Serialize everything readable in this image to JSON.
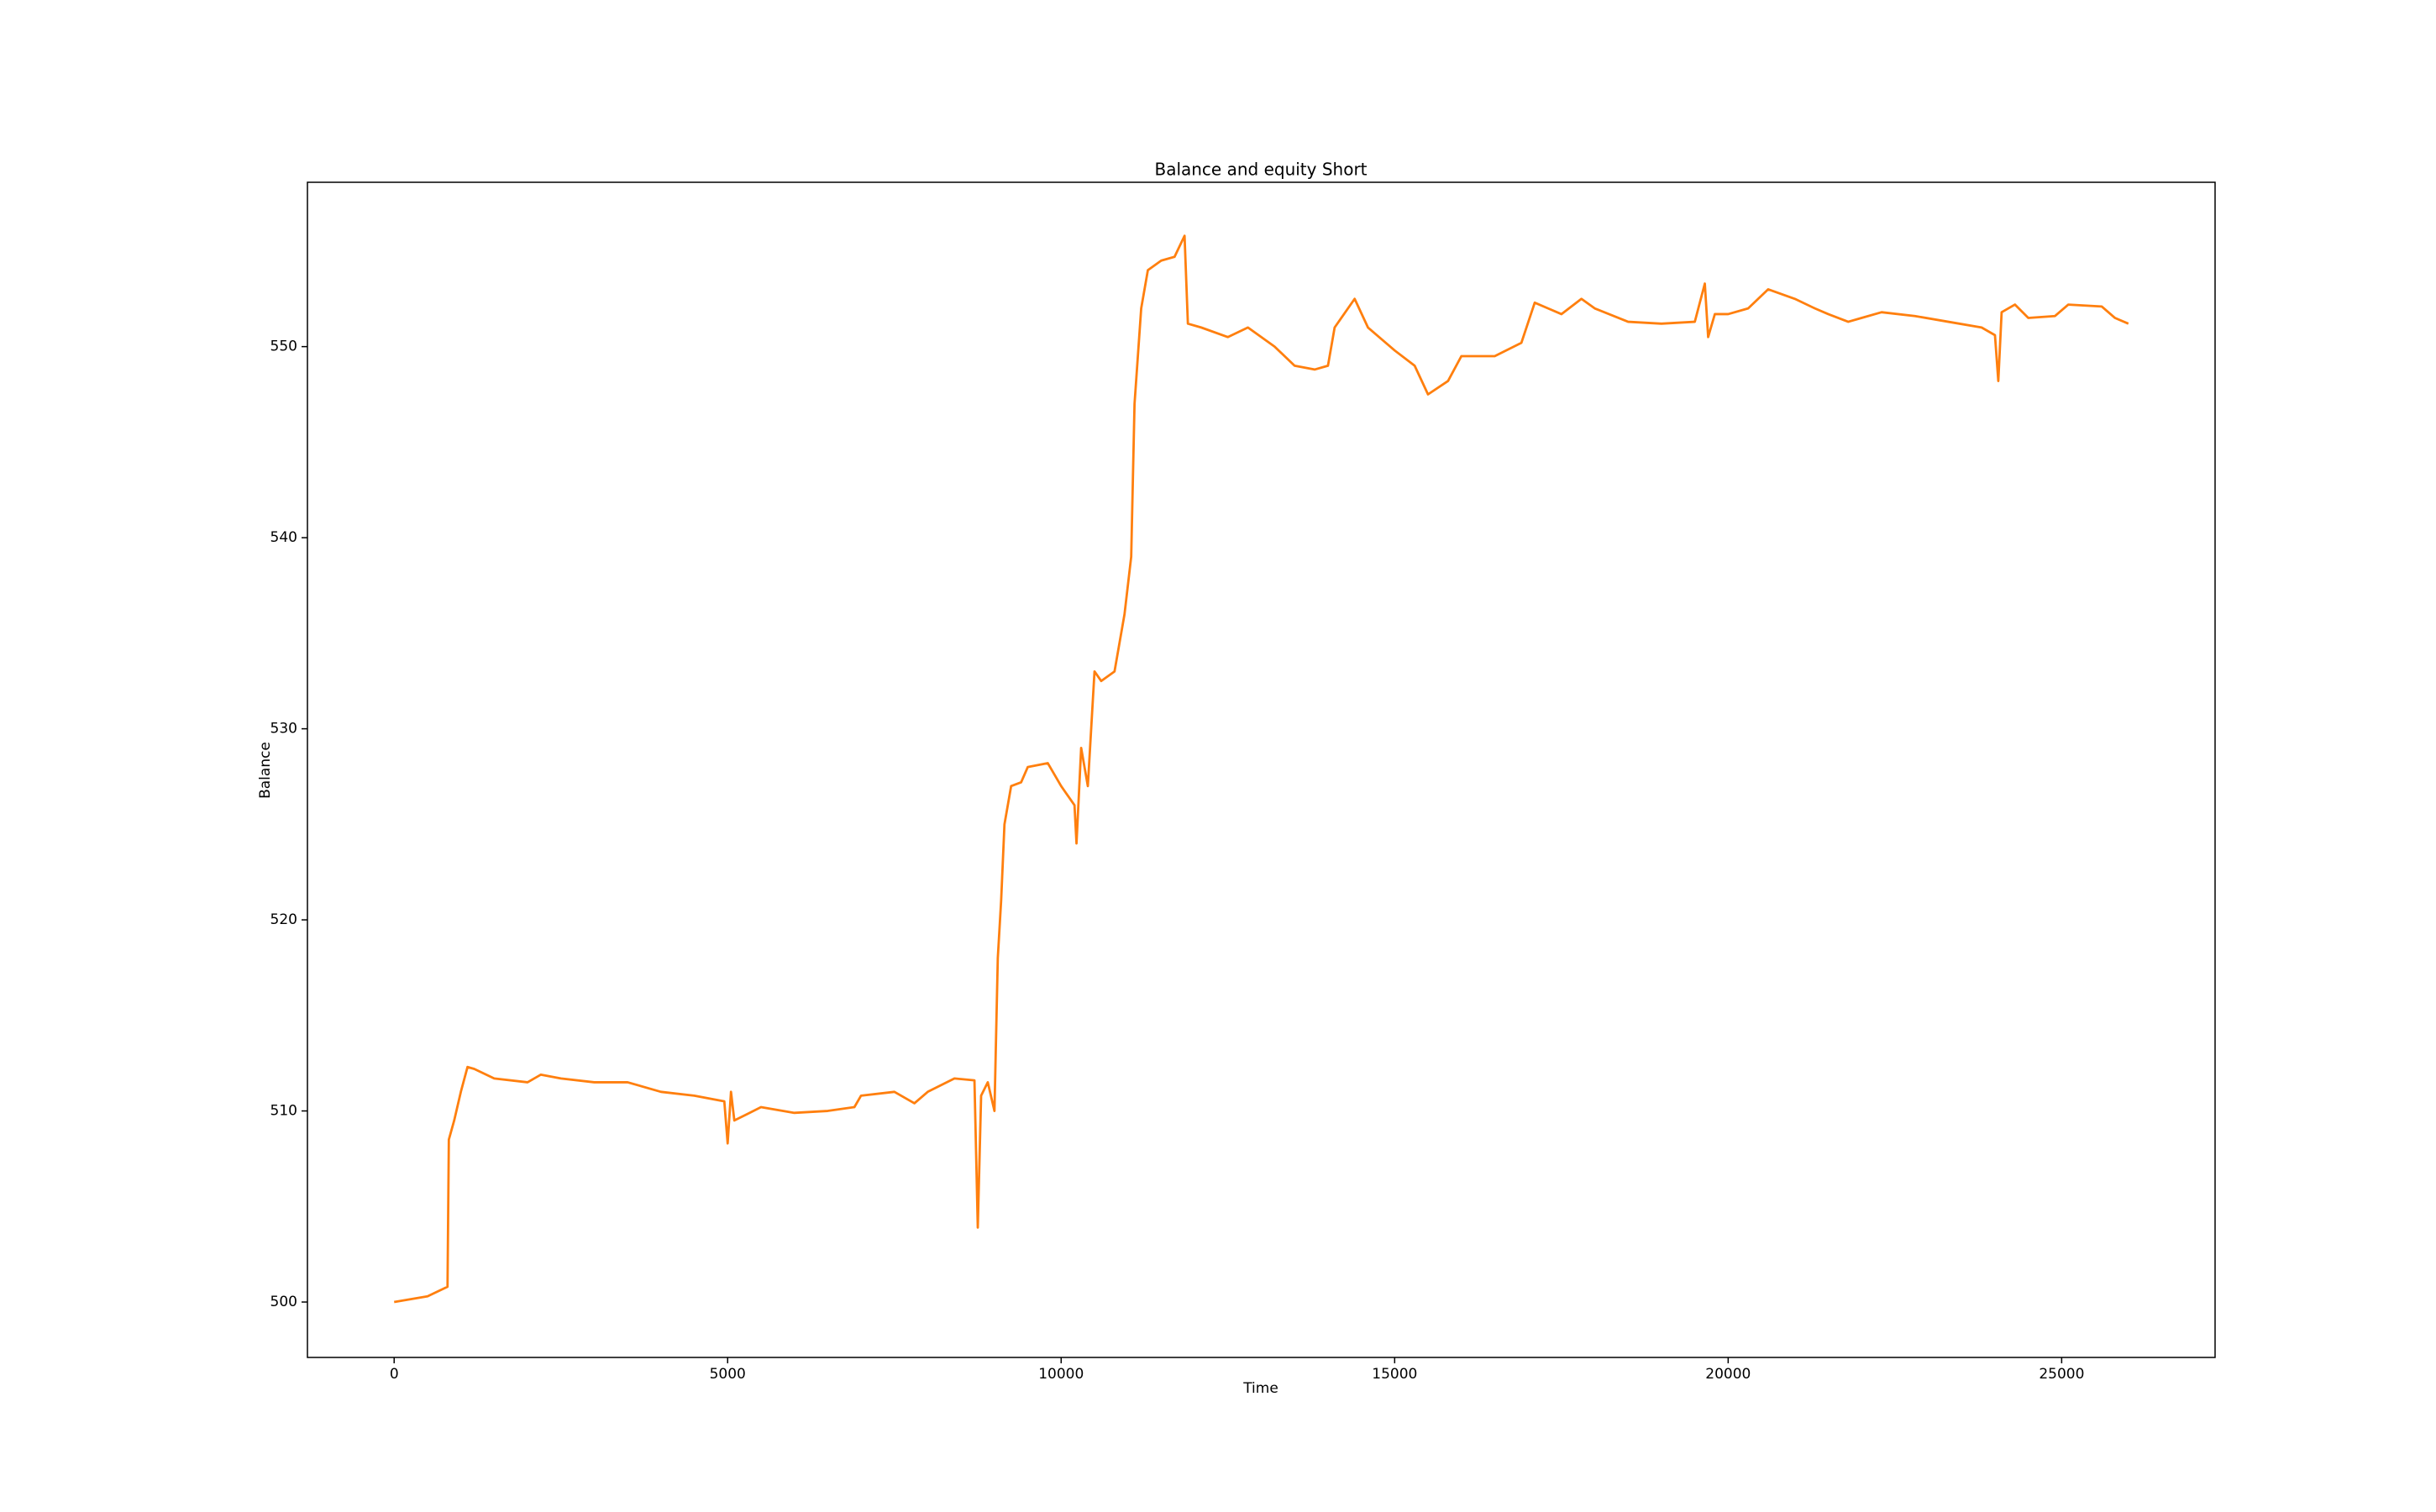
{
  "chart_data": {
    "type": "line",
    "title": "Balance and equity Short",
    "xlabel": "Time",
    "ylabel": "Balance",
    "x": [
      0,
      500,
      800,
      820,
      900,
      1000,
      1100,
      1200,
      1500,
      2000,
      2200,
      2500,
      3000,
      3500,
      4000,
      4500,
      4950,
      5000,
      5050,
      5100,
      5500,
      6000,
      6500,
      6900,
      7000,
      7500,
      7800,
      8000,
      8400,
      8700,
      8750,
      8800,
      8900,
      9000,
      9050,
      9100,
      9150,
      9250,
      9400,
      9500,
      9800,
      10000,
      10200,
      10230,
      10300,
      10400,
      10500,
      10600,
      10800,
      10950,
      11050,
      11100,
      11200,
      11300,
      11500,
      11700,
      11850,
      11900,
      12100,
      12500,
      12800,
      13200,
      13500,
      13800,
      14000,
      14100,
      14400,
      14600,
      15000,
      15300,
      15500,
      15800,
      16000,
      16500,
      16900,
      17100,
      17300,
      17500,
      17800,
      18000,
      18500,
      19000,
      19500,
      19650,
      19700,
      19800,
      20000,
      20300,
      20600,
      21000,
      21300,
      21500,
      21800,
      22000,
      22300,
      22800,
      23300,
      23800,
      24000,
      24050,
      24100,
      24300,
      24500,
      24900,
      25100,
      25600,
      25800,
      26000
    ],
    "series": [
      {
        "color": "#ff7f0e",
        "values": [
          500.0,
          500.3,
          500.8,
          508.5,
          509.5,
          511,
          512.3,
          512.2,
          511.7,
          511.5,
          511.9,
          511.7,
          511.5,
          511.5,
          511.0,
          510.8,
          510.5,
          508.3,
          511,
          509.5,
          510.2,
          509.9,
          510.0,
          510.2,
          510.8,
          511.0,
          510.4,
          511.0,
          511.7,
          511.6,
          503.9,
          510.8,
          511.5,
          510.0,
          518.0,
          521,
          525,
          527,
          527.2,
          528,
          528.2,
          527,
          526,
          524,
          529,
          527,
          533,
          532.5,
          533,
          536,
          539,
          547,
          552,
          554,
          554.5,
          554.7,
          555.8,
          551.2,
          551,
          550.5,
          551,
          550,
          549,
          548.8,
          549,
          551,
          552.5,
          551,
          549.8,
          549,
          547.5,
          548.2,
          549.5,
          549.5,
          550.2,
          552.3,
          552,
          551.7,
          552.5,
          552.0,
          551.3,
          551.2,
          551.3,
          553.3,
          550.5,
          551.7,
          551.7,
          552,
          553,
          552.5,
          552,
          551.7,
          551.3,
          551.5,
          551.8,
          551.6,
          551.3,
          551.0,
          550.6,
          548.2,
          551.8,
          552.2,
          551.5,
          551.6,
          552.2,
          552.1,
          551.5,
          551.2
        ]
      }
    ],
    "xlim": [
      -1300,
      27300
    ],
    "ylim": [
      497.1,
      558.6
    ],
    "xticks": [
      0,
      5000,
      10000,
      15000,
      20000,
      25000
    ],
    "yticks": [
      500,
      510,
      520,
      530,
      540,
      550
    ],
    "grid": false
  }
}
